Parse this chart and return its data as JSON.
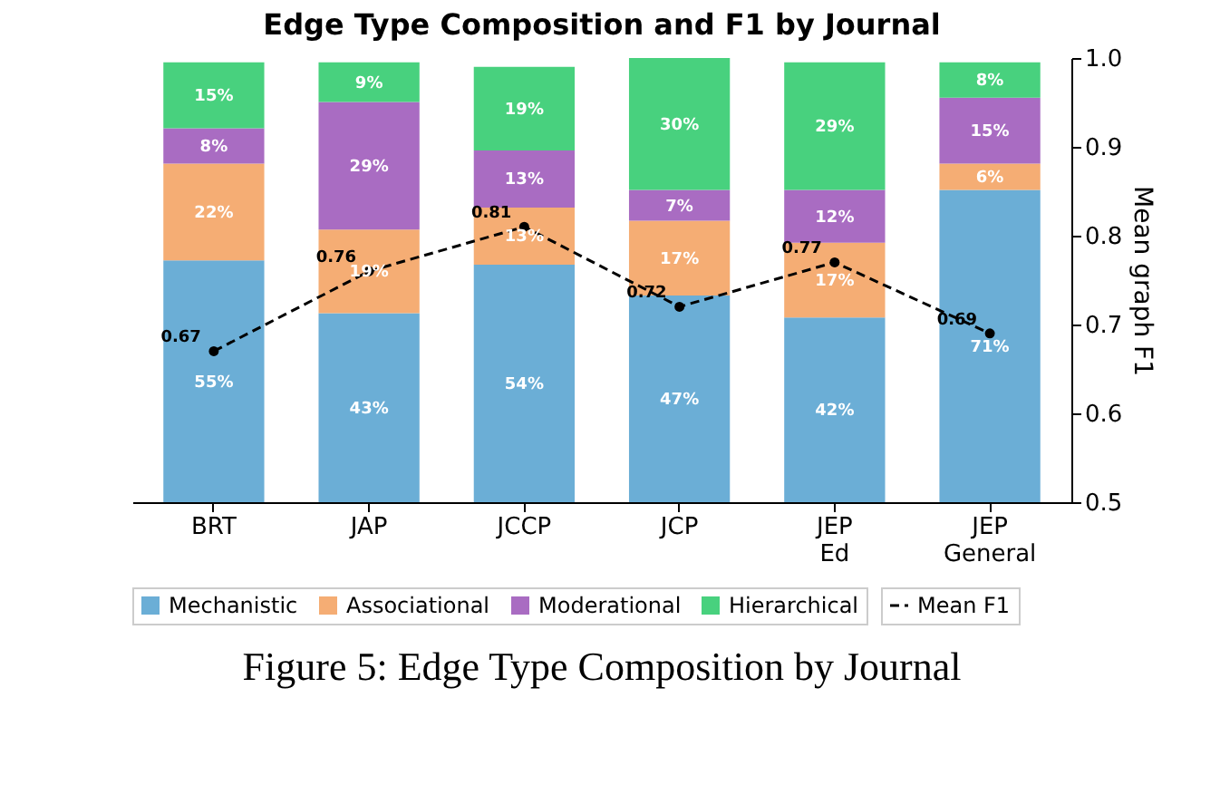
{
  "chart_data": {
    "type": "bar",
    "title": "Edge Type Composition and F1 by Journal",
    "categories": [
      "BRT",
      "JAP",
      "JCCP",
      "JCP",
      "JEP Ed",
      "JEP General"
    ],
    "stacked": true,
    "ylim": [
      0,
      101
    ],
    "y2label": "Mean graph F1",
    "y2lim": [
      0.5,
      1.0
    ],
    "y2ticks": [
      0.5,
      0.6,
      0.7,
      0.8,
      0.9,
      {
        "value": 1.0,
        "label": "1.0"
      }
    ],
    "legend": "bottom",
    "grid": false,
    "annotations": [
      "Figure 5: Edge Type Composition by Journal"
    ],
    "series": [
      {
        "name": "Mechanistic",
        "color": "#6baed6",
        "values": [
          55,
          43,
          54,
          47,
          42,
          71
        ],
        "value_labels": [
          "55%",
          "43%",
          "54%",
          "47%",
          "42%",
          "71%"
        ]
      },
      {
        "name": "Associational",
        "color": "#f5ad74",
        "values": [
          22,
          19,
          13,
          17,
          17,
          6
        ],
        "value_labels": [
          "22%",
          "19%",
          "13%",
          "17%",
          "17%",
          "6%"
        ]
      },
      {
        "name": "Moderational",
        "color": "#a96cc2",
        "values": [
          8,
          29,
          13,
          7,
          12,
          15
        ],
        "value_labels": [
          "8%",
          "29%",
          "13%",
          "7%",
          "12%",
          "15%"
        ]
      },
      {
        "name": "Hierarchical",
        "color": "#48d17e",
        "values": [
          15,
          9,
          19,
          30,
          29,
          8
        ],
        "value_labels": [
          "15%",
          "9%",
          "19%",
          "30%",
          "29%",
          "8%"
        ]
      },
      {
        "name": "Mean F1",
        "type": "line",
        "axis": "y2",
        "color": "#000000",
        "line_style": "dashed",
        "marker": "circle",
        "values": [
          0.67,
          0.76,
          0.81,
          0.72,
          0.77,
          0.69
        ],
        "value_labels": [
          "0.67",
          "0.76",
          "0.81",
          "0.72",
          "0.77",
          "0.69"
        ]
      }
    ]
  }
}
